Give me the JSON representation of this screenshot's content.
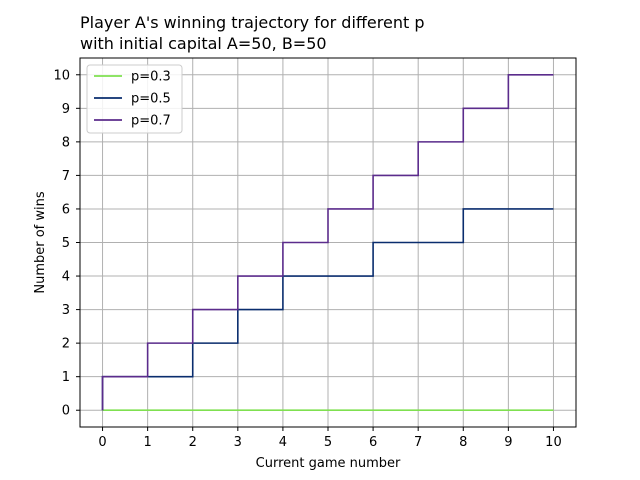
{
  "chart_data": {
    "type": "line",
    "title_line1": "Player A's winning trajectory for different p",
    "title_line2": "with initial capital A=50, B=50",
    "xlabel": "Current game number",
    "ylabel": "Number of wins",
    "xlim": [
      -0.5,
      10.5
    ],
    "ylim": [
      -0.5,
      10.5
    ],
    "xticks": [
      0,
      1,
      2,
      3,
      4,
      5,
      6,
      7,
      8,
      9,
      10
    ],
    "yticks": [
      0,
      1,
      2,
      3,
      4,
      5,
      6,
      7,
      8,
      9,
      10
    ],
    "grid": true,
    "legend_position": "upper-left",
    "step": "post",
    "series": [
      {
        "name": "p=0.3",
        "color": "#7fe050",
        "x": [
          0,
          1,
          2,
          3,
          4,
          5,
          6,
          7,
          8,
          9,
          10
        ],
        "y": [
          0,
          0,
          0,
          0,
          0,
          0,
          0,
          0,
          0,
          0,
          0
        ]
      },
      {
        "name": "p=0.5",
        "color": "#0a2d6e",
        "x": [
          0,
          1,
          2,
          3,
          4,
          5,
          6,
          7,
          8,
          9,
          10
        ],
        "y": [
          1,
          1,
          2,
          3,
          4,
          4,
          5,
          5,
          6,
          6,
          6
        ]
      },
      {
        "name": "p=0.7",
        "color": "#5b2c8c",
        "x": [
          0,
          1,
          2,
          3,
          4,
          5,
          6,
          7,
          8,
          9,
          10
        ],
        "y": [
          1,
          2,
          3,
          4,
          5,
          6,
          7,
          8,
          9,
          10,
          10
        ]
      }
    ]
  }
}
